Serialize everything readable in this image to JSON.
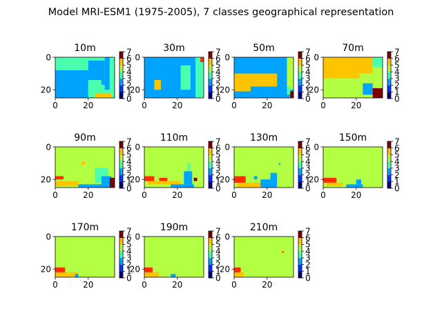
{
  "figure": {
    "title": "Model MRI-ESM1 (1975-2005), 7 classes geographical representation"
  },
  "colors": {
    "c0": "#00007f",
    "c1": "#0036ff",
    "c2": "#00a4ff",
    "c3": "#4affad",
    "c4": "#b2ff43",
    "c5": "#ffc400",
    "c6": "#ff2d00",
    "c7": "#7f0000"
  },
  "chart_data": [
    {
      "type": "heatmap",
      "title": "10m",
      "xlim": [
        0,
        36
      ],
      "ylim": [
        25,
        0
      ],
      "xticks": [
        0,
        20
      ],
      "yticks": [
        0,
        20
      ],
      "colorbar": {
        "range": [
          0,
          7
        ],
        "ticks": [
          0,
          1,
          2,
          3,
          4,
          5,
          6,
          7
        ]
      },
      "regions": [
        {
          "class": 3,
          "box": [
            0,
            0,
            36,
            25
          ]
        },
        {
          "class": 2,
          "box": [
            0,
            8,
            20,
            25
          ]
        },
        {
          "class": 2,
          "box": [
            20,
            2,
            30,
            17
          ]
        },
        {
          "class": 3,
          "box": [
            20,
            14,
            28,
            25
          ]
        },
        {
          "class": 2,
          "box": [
            30,
            0,
            33,
            20
          ]
        },
        {
          "class": 3,
          "box": [
            33,
            0,
            36,
            25
          ]
        },
        {
          "class": 5,
          "box": [
            24,
            22,
            34,
            25
          ]
        }
      ]
    },
    {
      "type": "heatmap",
      "title": "30m",
      "xlim": [
        0,
        36
      ],
      "ylim": [
        25,
        0
      ],
      "xticks": [
        0,
        20
      ],
      "yticks": [
        0,
        20
      ],
      "colorbar": {
        "range": [
          0,
          7
        ],
        "ticks": [
          0,
          1,
          2,
          3,
          4,
          5,
          6,
          7
        ]
      },
      "regions": [
        {
          "class": 2,
          "box": [
            0,
            0,
            36,
            25
          ]
        },
        {
          "class": 3,
          "box": [
            22,
            5,
            28,
            20
          ]
        },
        {
          "class": 3,
          "box": [
            31,
            0,
            34,
            25
          ]
        },
        {
          "class": 5,
          "box": [
            6,
            14,
            10,
            20
          ]
        },
        {
          "class": 6,
          "box": [
            34,
            0,
            36,
            3
          ]
        },
        {
          "class": 3,
          "box": [
            34,
            3,
            36,
            25
          ]
        }
      ]
    },
    {
      "type": "heatmap",
      "title": "50m",
      "xlim": [
        0,
        36
      ],
      "ylim": [
        25,
        0
      ],
      "xticks": [
        0,
        20
      ],
      "yticks": [
        0,
        20
      ],
      "colorbar": {
        "range": [
          0,
          7
        ],
        "ticks": [
          0,
          1,
          2,
          3,
          4,
          5,
          6,
          7
        ]
      },
      "regions": [
        {
          "class": 2,
          "box": [
            0,
            0,
            36,
            25
          ]
        },
        {
          "class": 5,
          "box": [
            0,
            10,
            26,
            18
          ]
        },
        {
          "class": 5,
          "box": [
            0,
            18,
            10,
            21
          ]
        },
        {
          "class": 4,
          "box": [
            32,
            0,
            36,
            20
          ]
        },
        {
          "class": 3,
          "box": [
            32,
            18,
            34,
            23
          ]
        },
        {
          "class": 7,
          "box": [
            34,
            21,
            36,
            25
          ]
        }
      ]
    },
    {
      "type": "heatmap",
      "title": "70m",
      "xlim": [
        0,
        36
      ],
      "ylim": [
        25,
        0
      ],
      "xticks": [
        0,
        20
      ],
      "yticks": [
        0,
        20
      ],
      "colorbar": {
        "range": [
          0,
          7
        ],
        "ticks": [
          0,
          1,
          2,
          3,
          4,
          5,
          6,
          7
        ]
      },
      "regions": [
        {
          "class": 4,
          "box": [
            0,
            0,
            36,
            25
          ]
        },
        {
          "class": 5,
          "box": [
            0,
            0,
            30,
            10
          ]
        },
        {
          "class": 5,
          "box": [
            0,
            10,
            22,
            13
          ]
        },
        {
          "class": 3,
          "box": [
            30,
            0,
            36,
            6
          ]
        },
        {
          "class": 2,
          "box": [
            24,
            16,
            30,
            23
          ]
        },
        {
          "class": 7,
          "box": [
            30,
            19,
            36,
            25
          ]
        }
      ]
    },
    {
      "type": "heatmap",
      "title": "90m",
      "xlim": [
        0,
        36
      ],
      "ylim": [
        25,
        0
      ],
      "xticks": [
        0,
        20
      ],
      "yticks": [
        0,
        20
      ],
      "colorbar": {
        "range": [
          0,
          7
        ],
        "ticks": [
          0,
          1,
          2,
          3,
          4,
          5,
          6,
          7
        ]
      },
      "regions": [
        {
          "class": 4,
          "box": [
            0,
            0,
            36,
            25
          ]
        },
        {
          "class": 6,
          "box": [
            0,
            18,
            5,
            20
          ]
        },
        {
          "class": 5,
          "box": [
            0,
            21,
            14,
            24
          ]
        },
        {
          "class": 2,
          "box": [
            14,
            23,
            36,
            25
          ]
        },
        {
          "class": 3,
          "box": [
            24,
            13,
            32,
            22
          ]
        },
        {
          "class": 2,
          "box": [
            28,
            18,
            34,
            23
          ]
        },
        {
          "class": 7,
          "box": [
            33,
            19,
            36,
            25
          ]
        },
        {
          "class": 5,
          "box": [
            16,
            9,
            18,
            11
          ]
        }
      ]
    },
    {
      "type": "heatmap",
      "title": "110m",
      "xlim": [
        0,
        36
      ],
      "ylim": [
        25,
        0
      ],
      "xticks": [
        0,
        20
      ],
      "yticks": [
        0,
        20
      ],
      "colorbar": {
        "range": [
          0,
          7
        ],
        "ticks": [
          0,
          1,
          2,
          3,
          4,
          5,
          6,
          7
        ]
      },
      "regions": [
        {
          "class": 4,
          "box": [
            0,
            0,
            36,
            25
          ]
        },
        {
          "class": 6,
          "box": [
            0,
            18,
            6,
            21
          ]
        },
        {
          "class": 6,
          "box": [
            9,
            19,
            14,
            21
          ]
        },
        {
          "class": 5,
          "box": [
            2,
            21,
            22,
            23
          ]
        },
        {
          "class": 2,
          "box": [
            16,
            23,
            30,
            25
          ]
        },
        {
          "class": 2,
          "box": [
            24,
            15,
            29,
            23
          ]
        },
        {
          "class": 3,
          "box": [
            26,
            10,
            28,
            15
          ]
        },
        {
          "class": 7,
          "box": [
            30,
            19,
            32,
            21
          ]
        }
      ]
    },
    {
      "type": "heatmap",
      "title": "130m",
      "xlim": [
        0,
        36
      ],
      "ylim": [
        25,
        0
      ],
      "xticks": [
        0,
        20
      ],
      "yticks": [
        0,
        20
      ],
      "colorbar": {
        "range": [
          0,
          7
        ],
        "ticks": [
          0,
          1,
          2,
          3,
          4,
          5,
          6,
          7
        ]
      },
      "regions": [
        {
          "class": 4,
          "box": [
            0,
            0,
            36,
            25
          ]
        },
        {
          "class": 6,
          "box": [
            0,
            18,
            7,
            22
          ]
        },
        {
          "class": 5,
          "box": [
            2,
            22,
            18,
            25
          ]
        },
        {
          "class": 2,
          "box": [
            16,
            20,
            26,
            25
          ]
        },
        {
          "class": 2,
          "box": [
            22,
            16,
            26,
            21
          ]
        },
        {
          "class": 2,
          "box": [
            12,
            18,
            14,
            20
          ]
        },
        {
          "class": 2,
          "box": [
            27,
            10,
            28,
            11
          ]
        }
      ]
    },
    {
      "type": "heatmap",
      "title": "150m",
      "xlim": [
        0,
        36
      ],
      "ylim": [
        25,
        0
      ],
      "xticks": [
        0,
        20
      ],
      "yticks": [
        0,
        20
      ],
      "colorbar": {
        "range": [
          0,
          7
        ],
        "ticks": [
          0,
          1,
          2,
          3,
          4,
          5,
          6,
          7
        ]
      },
      "regions": [
        {
          "class": 4,
          "box": [
            0,
            0,
            36,
            25
          ]
        },
        {
          "class": 6,
          "box": [
            0,
            19,
            8,
            22
          ]
        },
        {
          "class": 5,
          "box": [
            2,
            22,
            12,
            24
          ]
        },
        {
          "class": 2,
          "box": [
            14,
            23,
            24,
            25
          ]
        },
        {
          "class": 2,
          "box": [
            20,
            20,
            23,
            23
          ]
        }
      ]
    },
    {
      "type": "heatmap",
      "title": "170m",
      "xlim": [
        0,
        36
      ],
      "ylim": [
        25,
        0
      ],
      "xticks": [
        0,
        20
      ],
      "yticks": [
        0,
        20
      ],
      "colorbar": {
        "range": [
          0,
          7
        ],
        "ticks": [
          0,
          1,
          2,
          3,
          4,
          5,
          6,
          7
        ]
      },
      "regions": [
        {
          "class": 4,
          "box": [
            0,
            0,
            36,
            25
          ]
        },
        {
          "class": 6,
          "box": [
            0,
            19,
            6,
            22
          ]
        },
        {
          "class": 5,
          "box": [
            0,
            22,
            14,
            25
          ]
        },
        {
          "class": 2,
          "box": [
            12,
            23,
            14,
            25
          ]
        }
      ]
    },
    {
      "type": "heatmap",
      "title": "190m",
      "xlim": [
        0,
        36
      ],
      "ylim": [
        25,
        0
      ],
      "xticks": [
        0,
        20
      ],
      "yticks": [
        0,
        20
      ],
      "colorbar": {
        "range": [
          0,
          7
        ],
        "ticks": [
          0,
          1,
          2,
          3,
          4,
          5,
          6,
          7
        ]
      },
      "regions": [
        {
          "class": 4,
          "box": [
            0,
            0,
            36,
            25
          ]
        },
        {
          "class": 6,
          "box": [
            0,
            19,
            5,
            22
          ]
        },
        {
          "class": 5,
          "box": [
            0,
            22,
            9,
            25
          ]
        },
        {
          "class": 2,
          "box": [
            16,
            23,
            19,
            25
          ]
        }
      ]
    },
    {
      "type": "heatmap",
      "title": "210m",
      "xlim": [
        0,
        36
      ],
      "ylim": [
        25,
        0
      ],
      "xticks": [
        0,
        20
      ],
      "yticks": [
        0,
        20
      ],
      "colorbar": {
        "range": [
          0,
          7
        ],
        "ticks": [
          0,
          1,
          2,
          3,
          4,
          5,
          6,
          7
        ]
      },
      "regions": [
        {
          "class": 4,
          "box": [
            0,
            0,
            36,
            25
          ]
        },
        {
          "class": 6,
          "box": [
            0,
            19,
            4,
            22
          ]
        },
        {
          "class": 5,
          "box": [
            0,
            22,
            6,
            25
          ]
        },
        {
          "class": 6,
          "box": [
            29,
            9,
            30,
            10
          ]
        }
      ]
    }
  ]
}
